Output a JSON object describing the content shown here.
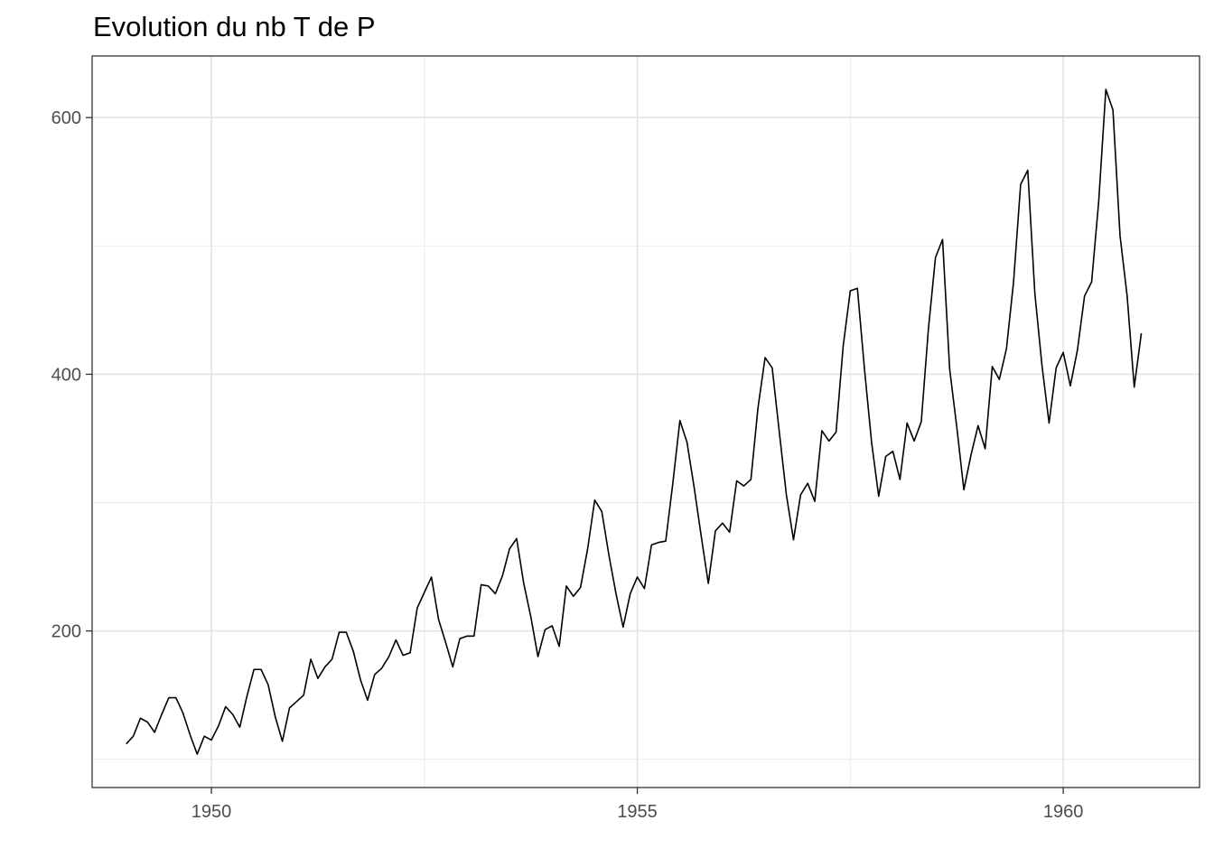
{
  "chart_data": {
    "type": "line",
    "title": "Evolution du nb T de P",
    "xlabel": "",
    "ylabel": "",
    "xlim": [
      1948.6,
      1961.6
    ],
    "ylim": [
      78,
      648
    ],
    "x_ticks": [
      1950,
      1955,
      1960
    ],
    "x_tick_labels": [
      "1950",
      "1955",
      "1960"
    ],
    "y_ticks": [
      200,
      400,
      600
    ],
    "y_tick_labels": [
      "200",
      "400",
      "600"
    ],
    "grid": true,
    "legend": "none",
    "line_color": "#000000",
    "series": [
      {
        "x_start": 1949.0,
        "x_step": 0.0833333,
        "values": [
          112,
          118,
          132,
          129,
          121,
          135,
          148,
          148,
          136,
          119,
          104,
          118,
          115,
          126,
          141,
          135,
          125,
          149,
          170,
          170,
          158,
          133,
          114,
          140,
          145,
          150,
          178,
          163,
          172,
          178,
          199,
          199,
          184,
          162,
          146,
          166,
          171,
          180,
          193,
          181,
          183,
          218,
          230,
          242,
          209,
          191,
          172,
          194,
          196,
          196,
          236,
          235,
          229,
          243,
          264,
          272,
          237,
          211,
          180,
          201,
          204,
          188,
          235,
          227,
          234,
          264,
          302,
          293,
          259,
          229,
          203,
          229,
          242,
          233,
          267,
          269,
          270,
          315,
          364,
          347,
          312,
          274,
          237,
          278,
          284,
          277,
          317,
          313,
          318,
          374,
          413,
          405,
          355,
          306,
          271,
          306,
          315,
          301,
          356,
          348,
          355,
          422,
          465,
          467,
          404,
          347,
          305,
          336,
          340,
          318,
          362,
          348,
          363,
          435,
          491,
          505,
          404,
          359,
          310,
          337,
          360,
          342,
          406,
          396,
          420,
          472,
          548,
          559,
          463,
          407,
          362,
          405,
          417,
          391,
          419,
          461,
          472,
          535,
          622,
          606,
          508,
          461,
          390,
          432
        ]
      }
    ]
  }
}
